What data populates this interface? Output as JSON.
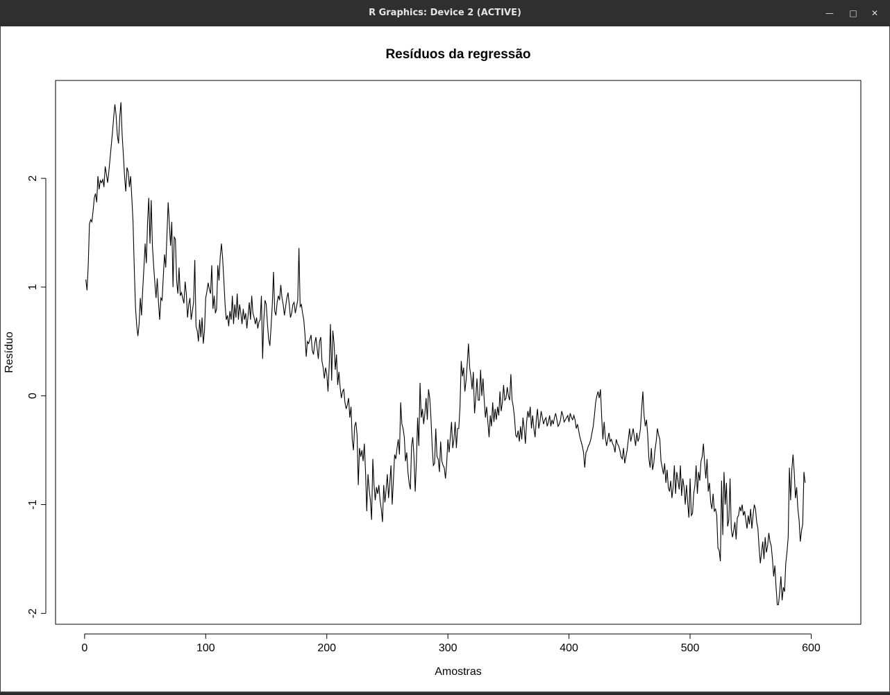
{
  "window": {
    "title": "R Graphics: Device 2 (ACTIVE)",
    "controls": {
      "minimize_icon": "minimize-icon",
      "maximize_icon": "maximize-icon",
      "close_icon": "close-icon"
    }
  },
  "chart_data": {
    "type": "line",
    "title": "Resíduos da regressão",
    "xlabel": "Amostras",
    "ylabel": "Resíduo",
    "xlim": [
      -24,
      641
    ],
    "ylim": [
      -2.1,
      2.9
    ],
    "xticks": [
      0,
      100,
      200,
      300,
      400,
      500,
      600
    ],
    "xtick_labels": [
      "0",
      "100",
      "200",
      "300",
      "400",
      "500",
      "600"
    ],
    "yticks": [
      -2,
      -1,
      0,
      1,
      2
    ],
    "ytick_labels": [
      "-2",
      "-1",
      "0",
      "1",
      "2"
    ],
    "grid": false,
    "legend": "none",
    "line_color": "#000000",
    "series": [
      {
        "x_start": 1,
        "x_step": 1,
        "y": [
          1.07,
          0.97,
          1.2,
          1.58,
          1.62,
          1.6,
          1.7,
          1.82,
          1.86,
          1.78,
          2.02,
          1.9,
          1.98,
          1.96,
          1.99,
          1.92,
          2.11,
          2.04,
          1.96,
          2.06,
          2.18,
          2.3,
          2.42,
          2.56,
          2.68,
          2.58,
          2.4,
          2.32,
          2.56,
          2.7,
          2.4,
          2.22,
          2.02,
          1.88,
          2.1,
          2.06,
          1.92,
          2.02,
          1.82,
          1.6,
          1.18,
          0.82,
          0.65,
          0.55,
          0.66,
          0.9,
          0.74,
          0.98,
          1.18,
          1.4,
          1.22,
          1.6,
          1.82,
          1.4,
          1.8,
          1.38,
          1.2,
          1.04,
          0.9,
          1.08,
          0.86,
          0.7,
          0.9,
          0.88,
          1.1,
          1.3,
          1.18,
          1.48,
          1.78,
          1.58,
          1.38,
          1.6,
          1.0,
          1.46,
          1.44,
          1.06,
          0.94,
          1.18,
          0.92,
          0.95,
          0.9,
          0.85,
          1.05,
          0.94,
          0.72,
          0.84,
          0.9,
          0.7,
          0.78,
          0.86,
          1.25,
          0.64,
          0.6,
          0.5,
          0.7,
          0.54,
          0.72,
          0.48,
          0.6,
          0.9,
          0.96,
          1.04,
          0.98,
          0.94,
          1.2,
          0.8,
          0.92,
          0.76,
          0.8,
          1.2,
          1.06,
          1.28,
          1.4,
          1.26,
          1.06,
          0.84,
          0.7,
          0.74,
          0.64,
          0.78,
          0.7,
          0.92,
          0.66,
          0.84,
          0.72,
          0.94,
          0.7,
          0.84,
          0.76,
          0.66,
          0.8,
          0.7,
          0.76,
          0.62,
          0.74,
          0.86,
          0.7,
          0.92,
          0.76,
          0.72,
          0.66,
          0.72,
          0.62,
          0.68,
          0.7,
          0.92,
          0.34,
          0.7,
          0.88,
          0.84,
          0.66,
          0.52,
          0.46,
          0.64,
          0.84,
          1.14,
          0.78,
          0.74,
          0.86,
          0.92,
          0.88,
          1.02,
          0.9,
          0.84,
          0.74,
          0.82,
          0.9,
          0.95,
          0.84,
          0.72,
          0.76,
          0.84,
          0.86,
          0.76,
          0.82,
          0.88,
          1.36,
          0.82,
          0.84,
          0.76,
          0.7,
          0.56,
          0.36,
          0.5,
          0.48,
          0.52,
          0.56,
          0.42,
          0.38,
          0.48,
          0.54,
          0.44,
          0.34,
          0.5,
          0.54,
          0.32,
          0.26,
          0.16,
          0.26,
          0.2,
          0.04,
          0.28,
          0.66,
          0.14,
          0.6,
          0.48,
          0.24,
          0.38,
          0.1,
          0.22,
          0.08,
          -0.02,
          0.04,
          0.06,
          -0.06,
          -0.12,
          -0.08,
          -0.02,
          -0.2,
          -0.1,
          -0.4,
          -0.5,
          -0.28,
          -0.24,
          -0.36,
          -0.82,
          -0.48,
          -0.56,
          -0.5,
          -0.6,
          -0.44,
          -0.7,
          -1.06,
          -0.72,
          -0.86,
          -0.96,
          -1.14,
          -0.58,
          -0.82,
          -0.96,
          -0.84,
          -0.9,
          -0.82,
          -0.96,
          -1.04,
          -1.16,
          -0.82,
          -0.98,
          -0.86,
          -0.72,
          -0.94,
          -0.8,
          -0.64,
          -1.0,
          -0.78,
          -0.54,
          -0.58,
          -0.48,
          -0.4,
          -0.54,
          -0.06,
          -0.26,
          -0.3,
          -0.38,
          -0.6,
          -0.52,
          -0.7,
          -0.8,
          -0.86,
          -0.46,
          -0.38,
          -0.56,
          -0.88,
          -0.6,
          -0.2,
          -0.46,
          0.12,
          -0.2,
          -0.12,
          -0.26,
          -0.16,
          -0.02,
          -0.22,
          0.06,
          -0.02,
          -0.2,
          -0.46,
          -0.64,
          -0.62,
          -0.3,
          -0.56,
          -0.58,
          -0.7,
          -0.42,
          -0.6,
          -0.64,
          -0.66,
          -0.76,
          -0.62,
          -0.4,
          -0.52,
          -0.38,
          -0.24,
          -0.48,
          -0.4,
          -0.24,
          -0.48,
          -0.3,
          -0.3,
          -0.1,
          0.32,
          0.18,
          0.26,
          0.04,
          0.14,
          0.3,
          0.48,
          0.26,
          0.18,
          0.06,
          0.22,
          -0.16,
          -0.02,
          0.16,
          -0.04,
          -0.04,
          0.24,
          0.0,
          0.16,
          -0.04,
          -0.2,
          -0.1,
          -0.24,
          -0.38,
          -0.18,
          -0.28,
          -0.06,
          -0.24,
          -0.12,
          -0.22,
          -0.1,
          -0.18,
          0.04,
          -0.14,
          -0.06,
          0.1,
          -0.04,
          -0.02,
          0.08,
          0.0,
          -0.04,
          0.2,
          -0.04,
          -0.1,
          -0.2,
          -0.36,
          -0.38,
          -0.32,
          -0.42,
          -0.28,
          -0.4,
          -0.2,
          -0.3,
          -0.44,
          -0.24,
          -0.14,
          -0.2,
          -0.1,
          -0.3,
          -0.18,
          -0.3,
          -0.38,
          -0.22,
          -0.12,
          -0.3,
          -0.24,
          -0.14,
          -0.2,
          -0.26,
          -0.22,
          -0.2,
          -0.28,
          -0.24,
          -0.18,
          -0.28,
          -0.22,
          -0.26,
          -0.2,
          -0.16,
          -0.22,
          -0.28,
          -0.26,
          -0.22,
          -0.14,
          -0.18,
          -0.24,
          -0.22,
          -0.2,
          -0.18,
          -0.24,
          -0.16,
          -0.2,
          -0.22,
          -0.18,
          -0.22,
          -0.3,
          -0.26,
          -0.32,
          -0.38,
          -0.42,
          -0.46,
          -0.52,
          -0.66,
          -0.52,
          -0.5,
          -0.46,
          -0.44,
          -0.4,
          -0.34,
          -0.28,
          -0.18,
          -0.06,
          0.0,
          0.04,
          -0.02,
          0.06,
          -0.2,
          -0.4,
          -0.24,
          -0.38,
          -0.46,
          -0.4,
          -0.34,
          -0.42,
          -0.4,
          -0.44,
          -0.46,
          -0.52,
          -0.4,
          -0.44,
          -0.46,
          -0.5,
          -0.56,
          -0.58,
          -0.48,
          -0.62,
          -0.56,
          -0.5,
          -0.4,
          -0.3,
          -0.42,
          -0.36,
          -0.3,
          -0.38,
          -0.46,
          -0.34,
          -0.42,
          -0.38,
          -0.3,
          -0.12,
          0.04,
          -0.18,
          -0.28,
          -0.22,
          -0.36,
          -0.58,
          -0.66,
          -0.48,
          -0.68,
          -0.62,
          -0.5,
          -0.42,
          -0.3,
          -0.36,
          -0.4,
          -0.6,
          -0.66,
          -0.72,
          -0.62,
          -0.8,
          -0.68,
          -0.84,
          -0.88,
          -0.78,
          -0.94,
          -0.84,
          -0.64,
          -0.9,
          -0.7,
          -0.78,
          -0.86,
          -0.64,
          -0.92,
          -0.76,
          -0.84,
          -1.0,
          -0.82,
          -0.98,
          -1.12,
          -0.76,
          -1.1,
          -1.08,
          -0.9,
          -0.82,
          -0.64,
          -0.9,
          -0.7,
          -0.78,
          -0.6,
          -0.56,
          -0.44,
          -0.62,
          -0.76,
          -0.58,
          -0.88,
          -0.8,
          -0.98,
          -1.04,
          -0.9,
          -1.06,
          -1.04,
          -1.1,
          -1.4,
          -1.42,
          -1.52,
          -0.78,
          -1.28,
          -0.7,
          -1.0,
          -0.8,
          -1.2,
          -1.14,
          -0.76,
          -1.22,
          -1.3,
          -1.24,
          -1.16,
          -1.32,
          -1.12,
          -1.1,
          -1.02,
          -1.06,
          -1.0,
          -1.1,
          -1.06,
          -1.14,
          -1.22,
          -1.1,
          -1.18,
          -1.04,
          -1.22,
          -1.1,
          -1.0,
          -1.04,
          -1.16,
          -1.22,
          -1.4,
          -1.54,
          -1.44,
          -1.34,
          -1.5,
          -1.3,
          -1.44,
          -1.38,
          -1.26,
          -1.34,
          -1.38,
          -1.5,
          -1.66,
          -1.56,
          -1.76,
          -1.92,
          -1.92,
          -1.8,
          -1.66,
          -1.88,
          -1.76,
          -1.8,
          -1.54,
          -1.44,
          -1.3,
          -0.66,
          -0.96,
          -0.68,
          -0.54,
          -0.7,
          -0.94,
          -0.84,
          -1.04,
          -1.14,
          -1.34,
          -1.24,
          -1.18,
          -0.7,
          -0.8
        ]
      }
    ]
  }
}
